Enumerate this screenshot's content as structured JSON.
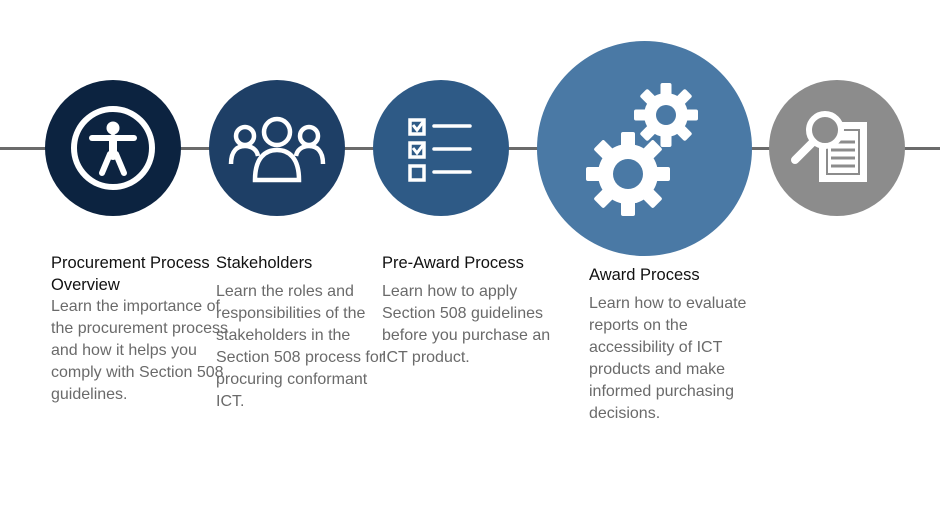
{
  "colors": {
    "line": "#6b6b6b",
    "step1": "#0c2340",
    "step2": "#1e3f66",
    "step3": "#2e5a86",
    "step4": "#4a79a5",
    "step5": "#8c8c8c"
  },
  "steps": [
    {
      "icon": "accessibility-person-icon",
      "title": "Procurement Process Overview",
      "description": "Learn the importance of the procurement process and how it helps you comply with Section 508 guidelines."
    },
    {
      "icon": "people-group-icon",
      "title": "Stakeholders",
      "description": "Learn the roles and responsibilities of the stakeholders in the Section 508 process for procuring conformant ICT."
    },
    {
      "icon": "checklist-icon",
      "title": "Pre-Award Process",
      "description": "Learn how to apply Section 508 guidelines before you purchase an ICT product."
    },
    {
      "icon": "gears-icon",
      "title": "Award Process",
      "description": "Learn how to evaluate reports on the accessibility of ICT products and make informed purchasing decisions."
    },
    {
      "icon": "magnifier-document-icon",
      "title": "",
      "description": ""
    }
  ]
}
